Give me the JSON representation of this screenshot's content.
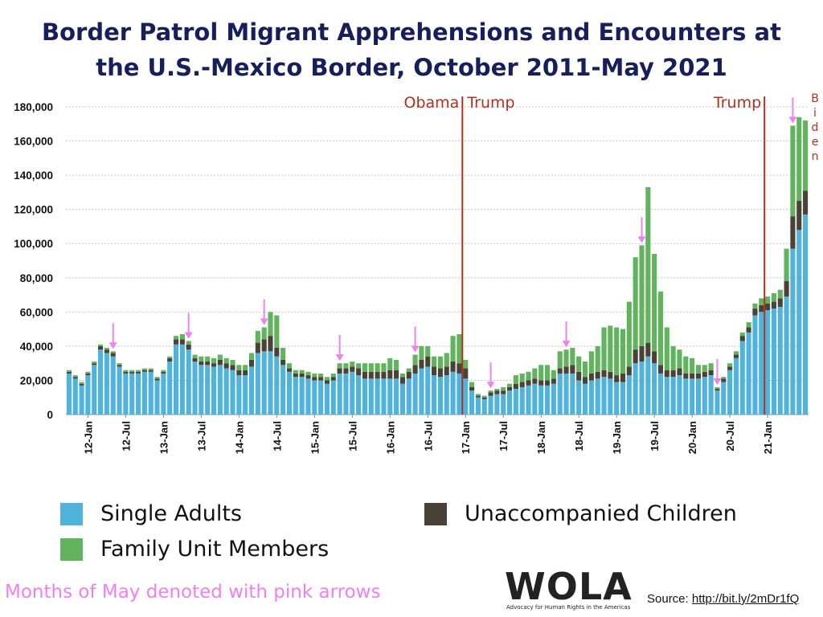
{
  "title_line1": "Border Patrol Migrant Apprehensions and Encounters at",
  "title_line2": "the U.S.-Mexico Border, October 2011-May 2021",
  "legend": {
    "single_adults": "Single Adults",
    "unaccompanied_children": "Unaccompanied Children",
    "family_unit_members": "Family Unit Members"
  },
  "colors": {
    "single_adults": "#4fb3dc",
    "family_unit_members": "#62b35e",
    "unaccompanied_children": "#4a4236",
    "admin_line": "#b03020",
    "arrow": "#f07ff0",
    "title": "#161e5c"
  },
  "note": "Months of May denoted with pink arrows",
  "logo": {
    "name": "WOLA",
    "tagline": "Advocacy for Human Rights in the Americas"
  },
  "source": {
    "label": "Source:",
    "link": "http://bit.ly/2mDr1fQ"
  },
  "chart_data": {
    "type": "bar",
    "stacked": true,
    "grid": true,
    "legend_position": "bottom",
    "ylim": [
      0,
      180000
    ],
    "yticks": [
      0,
      20000,
      40000,
      60000,
      80000,
      100000,
      120000,
      140000,
      160000,
      180000
    ],
    "ytick_labels": [
      "0",
      "20,000",
      "40,000",
      "60,000",
      "80,000",
      "100,000",
      "120,000",
      "140,000",
      "160,000",
      "180,000"
    ],
    "xtick_labels": [
      {
        "label": "12-Jan",
        "index": 3
      },
      {
        "label": "12-Jul",
        "index": 9
      },
      {
        "label": "13-Jan",
        "index": 15
      },
      {
        "label": "13-Jul",
        "index": 21
      },
      {
        "label": "14-Jan",
        "index": 27
      },
      {
        "label": "14-Jul",
        "index": 33
      },
      {
        "label": "15-Jan",
        "index": 39
      },
      {
        "label": "15-Jul",
        "index": 45
      },
      {
        "label": "16-Jan",
        "index": 51
      },
      {
        "label": "16-Jul",
        "index": 57
      },
      {
        "label": "17-Jan",
        "index": 63
      },
      {
        "label": "17-Jul",
        "index": 69
      },
      {
        "label": "18-Jan",
        "index": 75
      },
      {
        "label": "18-Jul",
        "index": 81
      },
      {
        "label": "19-Jan",
        "index": 87
      },
      {
        "label": "19-Jul",
        "index": 93
      },
      {
        "label": "20-Jan",
        "index": 99
      },
      {
        "label": "20-Jul",
        "index": 105
      },
      {
        "label": "21-Jan",
        "index": 111
      }
    ],
    "start_month": "2011-10",
    "may_indices": [
      7,
      19,
      31,
      43,
      55,
      67,
      79,
      91,
      103,
      115
    ],
    "administrations": [
      {
        "label_left": "Obama",
        "label_right": "Trump",
        "index": 63
      },
      {
        "label_left": "Trump",
        "label_right": "Biden",
        "index": 111
      }
    ],
    "series": [
      {
        "name": "Single Adults",
        "values": [
          24000,
          21000,
          17000,
          23000,
          29000,
          38000,
          36000,
          34000,
          28000,
          24000,
          24000,
          24000,
          25000,
          25000,
          20000,
          24000,
          31000,
          41000,
          41000,
          38000,
          31000,
          29000,
          29000,
          28000,
          29000,
          27000,
          26000,
          23000,
          23000,
          28000,
          36000,
          37000,
          37000,
          34000,
          29000,
          25000,
          22000,
          22000,
          21000,
          20000,
          20000,
          18000,
          20000,
          24000,
          24000,
          25000,
          23000,
          21000,
          21000,
          21000,
          21000,
          21000,
          21000,
          18000,
          21000,
          24000,
          27000,
          28000,
          23000,
          22000,
          23000,
          25000,
          24000,
          21000,
          14000,
          10000,
          9000,
          11000,
          12000,
          12000,
          14000,
          15000,
          16000,
          17000,
          18000,
          17000,
          17000,
          18000,
          24000,
          24000,
          24000,
          20000,
          18000,
          20000,
          21000,
          22000,
          21000,
          19000,
          19000,
          23000,
          30000,
          31000,
          34000,
          30000,
          24000,
          22000,
          22000,
          23000,
          21000,
          21000,
          21000,
          22000,
          23000,
          14000,
          19000,
          26000,
          33000,
          43000,
          48000,
          58000,
          60000,
          61000,
          62000,
          63000,
          69000,
          97000,
          108000,
          117000
        ]
      },
      {
        "name": "Unaccompanied Children",
        "values": [
          1000,
          1000,
          1000,
          1000,
          1000,
          2000,
          2000,
          2000,
          1000,
          1000,
          1000,
          1000,
          1000,
          1000,
          1000,
          1000,
          2000,
          3000,
          3000,
          3000,
          2000,
          2000,
          2000,
          2000,
          3000,
          3000,
          3000,
          3000,
          3000,
          4000,
          6000,
          7000,
          9000,
          5000,
          3000,
          2000,
          2000,
          2000,
          2000,
          2000,
          2000,
          2000,
          2000,
          3000,
          3000,
          3000,
          4000,
          4000,
          4000,
          4000,
          4000,
          5000,
          5000,
          4000,
          4000,
          5000,
          5000,
          6000,
          5000,
          5000,
          5000,
          6000,
          6000,
          6000,
          2000,
          1000,
          1000,
          2000,
          2000,
          2000,
          2000,
          3000,
          3000,
          3000,
          3000,
          3000,
          3000,
          3000,
          3000,
          4000,
          5000,
          5000,
          4000,
          4000,
          4000,
          4000,
          4000,
          4000,
          5000,
          5000,
          8000,
          9000,
          8000,
          7000,
          5000,
          4000,
          4000,
          4000,
          3000,
          3000,
          3000,
          3000,
          3000,
          1000,
          2000,
          2000,
          2000,
          3000,
          3000,
          4000,
          4000,
          4000,
          4000,
          5000,
          9000,
          19000,
          17000,
          14000
        ]
      },
      {
        "name": "Family Unit Members",
        "values": [
          1000,
          1000,
          1000,
          1000,
          1000,
          1000,
          1000,
          1000,
          1000,
          1000,
          1000,
          1000,
          1000,
          1000,
          1000,
          1000,
          1000,
          2000,
          3000,
          2000,
          2000,
          3000,
          3000,
          3000,
          3000,
          3000,
          3000,
          3000,
          3000,
          4000,
          7000,
          7000,
          14000,
          19000,
          7000,
          3000,
          2000,
          2000,
          2000,
          2000,
          2000,
          2000,
          2000,
          3000,
          3000,
          3000,
          3000,
          5000,
          5000,
          5000,
          5000,
          7000,
          6000,
          2000,
          2000,
          6000,
          8000,
          6000,
          6000,
          7000,
          8000,
          15000,
          17000,
          5000,
          3000,
          1000,
          1000,
          1000,
          1000,
          2000,
          2000,
          5000,
          5000,
          5000,
          6000,
          9000,
          9000,
          5000,
          10000,
          10000,
          10000,
          9000,
          9000,
          13000,
          15000,
          25000,
          27000,
          28000,
          26000,
          38000,
          54000,
          59000,
          91000,
          57000,
          43000,
          25000,
          14000,
          11000,
          10000,
          9000,
          5000,
          4000,
          4000,
          1000,
          1000,
          2000,
          2000,
          2000,
          3000,
          3000,
          4000,
          4000,
          5000,
          5000,
          19000,
          53000,
          49000,
          41000
        ]
      }
    ]
  }
}
